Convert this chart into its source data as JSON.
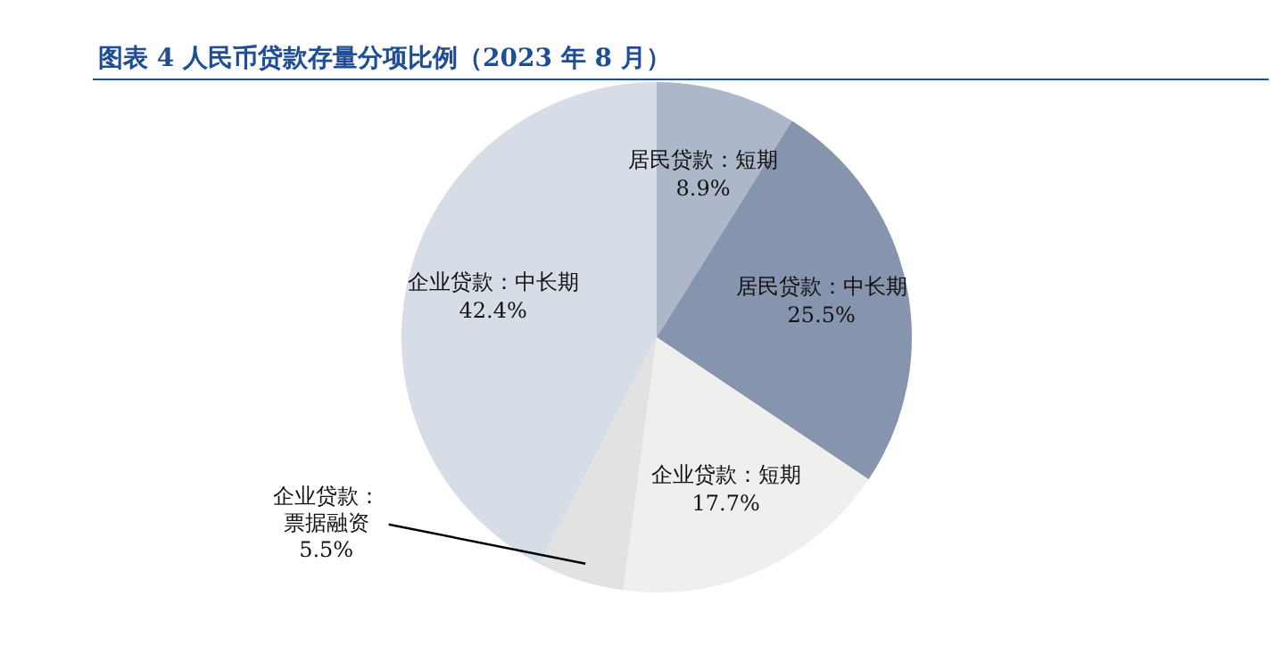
{
  "chart_data": {
    "type": "pie",
    "title": "图表 4 人民币贷款存量分项比例（2023 年 8 月）",
    "categories": [
      "居民贷款：短期",
      "居民贷款：中长期",
      "企业贷款：短期",
      "企业贷款：票据融资",
      "企业贷款：中长期"
    ],
    "values": [
      8.9,
      25.5,
      17.7,
      5.5,
      42.4
    ],
    "value_labels": [
      "8.9%",
      "25.5%",
      "17.7%",
      "5.5%",
      "42.4%"
    ],
    "colors": [
      "#acb7c9",
      "#8694ae",
      "#efefef",
      "#e2e2e2",
      "#d6dde6"
    ],
    "legend": false
  }
}
